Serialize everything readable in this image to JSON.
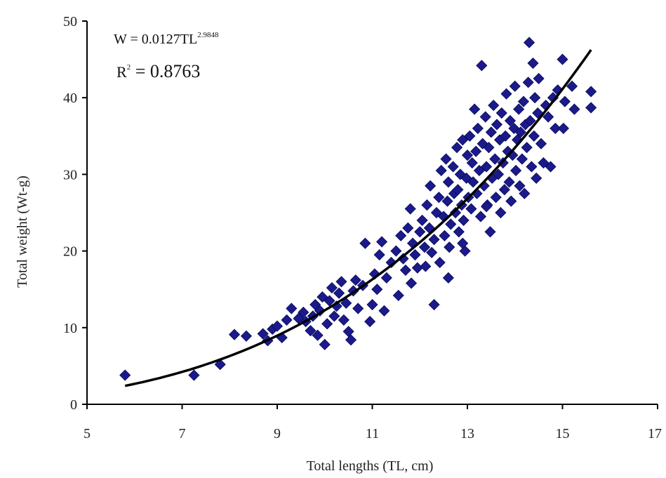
{
  "chart_data": {
    "type": "scatter",
    "title": "",
    "xlabel": "Total lengths (TL, cm)",
    "ylabel": "Total weight (Wt-g)",
    "xlim": [
      5,
      17
    ],
    "ylim": [
      0,
      50
    ],
    "x_ticks": [
      "5",
      "7",
      "9",
      "11",
      "13",
      "15",
      "17"
    ],
    "y_ticks": [
      "0",
      "10",
      "20",
      "30",
      "40",
      "50"
    ],
    "grid": false,
    "legend": "none",
    "marker_color": "#1a1a8c",
    "line_color": "#000000",
    "equation": {
      "base": "W = 0.0127TL",
      "exponent": "2.9848"
    },
    "r_squared": {
      "prefix": "R",
      "sup": "2",
      "value": " = 0.8763"
    },
    "fit": {
      "a": 0.0127,
      "b": 2.9848,
      "x_range": [
        5.8,
        15.6
      ]
    },
    "series": [
      {
        "points": [
          [
            5.8,
            3.8
          ],
          [
            7.25,
            3.8
          ],
          [
            7.8,
            5.2
          ],
          [
            8.1,
            9.1
          ],
          [
            8.35,
            8.9
          ],
          [
            8.7,
            9.2
          ],
          [
            8.8,
            8.3
          ],
          [
            8.9,
            9.8
          ],
          [
            9.0,
            10.2
          ],
          [
            9.1,
            8.7
          ],
          [
            9.2,
            11.0
          ],
          [
            9.3,
            12.5
          ],
          [
            9.45,
            11.2
          ],
          [
            9.55,
            12.0
          ],
          [
            9.6,
            10.8
          ],
          [
            9.7,
            9.6
          ],
          [
            9.75,
            11.5
          ],
          [
            9.8,
            13.0
          ],
          [
            9.85,
            9.0
          ],
          [
            9.9,
            12.2
          ],
          [
            9.95,
            14.0
          ],
          [
            10.0,
            7.8
          ],
          [
            10.05,
            10.5
          ],
          [
            10.1,
            13.5
          ],
          [
            10.15,
            15.2
          ],
          [
            10.2,
            11.5
          ],
          [
            10.25,
            12.8
          ],
          [
            10.3,
            14.5
          ],
          [
            10.35,
            16.0
          ],
          [
            10.4,
            11.0
          ],
          [
            10.45,
            13.2
          ],
          [
            10.5,
            9.5
          ],
          [
            10.55,
            8.4
          ],
          [
            10.6,
            14.8
          ],
          [
            10.65,
            16.2
          ],
          [
            10.7,
            12.5
          ],
          [
            10.8,
            15.5
          ],
          [
            10.85,
            21.0
          ],
          [
            10.95,
            10.8
          ],
          [
            11.0,
            13.0
          ],
          [
            11.05,
            17.0
          ],
          [
            11.1,
            15.0
          ],
          [
            11.15,
            19.5
          ],
          [
            11.2,
            21.2
          ],
          [
            11.25,
            12.2
          ],
          [
            11.3,
            16.5
          ],
          [
            11.4,
            18.5
          ],
          [
            11.5,
            20.0
          ],
          [
            11.55,
            14.2
          ],
          [
            11.6,
            22.0
          ],
          [
            11.65,
            19.0
          ],
          [
            11.7,
            17.5
          ],
          [
            11.75,
            23.0
          ],
          [
            11.8,
            25.5
          ],
          [
            11.82,
            15.8
          ],
          [
            11.85,
            21.0
          ],
          [
            11.9,
            19.5
          ],
          [
            11.95,
            17.8
          ],
          [
            12.0,
            22.5
          ],
          [
            12.05,
            24.0
          ],
          [
            12.1,
            20.5
          ],
          [
            12.12,
            18.0
          ],
          [
            12.15,
            26.0
          ],
          [
            12.2,
            23.0
          ],
          [
            12.22,
            28.5
          ],
          [
            12.25,
            19.8
          ],
          [
            12.3,
            13.0
          ],
          [
            12.3,
            21.5
          ],
          [
            12.35,
            25.0
          ],
          [
            12.4,
            27.0
          ],
          [
            12.42,
            18.5
          ],
          [
            12.45,
            30.5
          ],
          [
            12.5,
            24.5
          ],
          [
            12.52,
            22.0
          ],
          [
            12.55,
            32.0
          ],
          [
            12.58,
            26.5
          ],
          [
            12.6,
            29.0
          ],
          [
            12.62,
            20.5
          ],
          [
            12.65,
            23.5
          ],
          [
            12.7,
            31.0
          ],
          [
            12.72,
            27.5
          ],
          [
            12.75,
            25.0
          ],
          [
            12.78,
            33.5
          ],
          [
            12.8,
            28.0
          ],
          [
            12.82,
            22.5
          ],
          [
            12.85,
            30.0
          ],
          [
            12.88,
            26.0
          ],
          [
            12.9,
            34.5
          ],
          [
            12.92,
            24.0
          ],
          [
            12.95,
            20.0
          ],
          [
            12.98,
            29.5
          ],
          [
            13.0,
            32.5
          ],
          [
            13.02,
            27.0
          ],
          [
            13.05,
            35.0
          ],
          [
            13.08,
            25.5
          ],
          [
            13.1,
            31.5
          ],
          [
            13.12,
            29.0
          ],
          [
            13.15,
            38.5
          ],
          [
            13.18,
            33.0
          ],
          [
            13.2,
            27.5
          ],
          [
            13.22,
            36.0
          ],
          [
            13.25,
            30.5
          ],
          [
            13.28,
            24.5
          ],
          [
            13.3,
            44.2
          ],
          [
            13.32,
            34.0
          ],
          [
            13.35,
            28.5
          ],
          [
            13.38,
            37.5
          ],
          [
            13.4,
            31.0
          ],
          [
            13.42,
            26.0
          ],
          [
            13.45,
            33.5
          ],
          [
            13.48,
            22.5
          ],
          [
            13.5,
            35.5
          ],
          [
            13.52,
            29.5
          ],
          [
            13.55,
            39.0
          ],
          [
            13.58,
            32.0
          ],
          [
            13.6,
            27.0
          ],
          [
            13.62,
            36.5
          ],
          [
            13.65,
            30.0
          ],
          [
            13.68,
            34.5
          ],
          [
            13.7,
            25.0
          ],
          [
            13.72,
            38.0
          ],
          [
            13.75,
            31.5
          ],
          [
            13.78,
            28.0
          ],
          [
            13.8,
            35.0
          ],
          [
            13.82,
            40.5
          ],
          [
            13.85,
            33.0
          ],
          [
            13.88,
            29.0
          ],
          [
            13.9,
            37.0
          ],
          [
            13.92,
            26.5
          ],
          [
            13.95,
            32.5
          ],
          [
            13.98,
            36.0
          ],
          [
            14.0,
            41.5
          ],
          [
            14.02,
            30.5
          ],
          [
            14.05,
            34.5
          ],
          [
            14.08,
            38.5
          ],
          [
            14.1,
            28.5
          ],
          [
            14.12,
            35.5
          ],
          [
            14.15,
            32.0
          ],
          [
            14.18,
            39.5
          ],
          [
            14.2,
            27.5
          ],
          [
            14.22,
            36.5
          ],
          [
            14.25,
            33.5
          ],
          [
            14.28,
            42.0
          ],
          [
            14.3,
            47.2
          ],
          [
            14.32,
            37.0
          ],
          [
            14.35,
            31.0
          ],
          [
            14.38,
            44.5
          ],
          [
            14.4,
            35.0
          ],
          [
            14.42,
            40.0
          ],
          [
            14.45,
            29.5
          ],
          [
            14.48,
            38.0
          ],
          [
            14.5,
            42.5
          ],
          [
            14.55,
            34.0
          ],
          [
            14.6,
            31.5
          ],
          [
            14.65,
            39.0
          ],
          [
            14.7,
            37.5
          ],
          [
            14.75,
            31.0
          ],
          [
            14.8,
            40.0
          ],
          [
            14.85,
            36.0
          ],
          [
            14.9,
            41.0
          ],
          [
            15.0,
            45.0
          ],
          [
            15.02,
            36.0
          ],
          [
            15.05,
            39.5
          ],
          [
            15.2,
            41.5
          ],
          [
            15.25,
            38.5
          ],
          [
            15.6,
            40.8
          ],
          [
            15.6,
            38.7
          ],
          [
            12.9,
            21.0
          ],
          [
            13.4,
            25.8
          ],
          [
            12.6,
            16.5
          ]
        ]
      }
    ]
  }
}
